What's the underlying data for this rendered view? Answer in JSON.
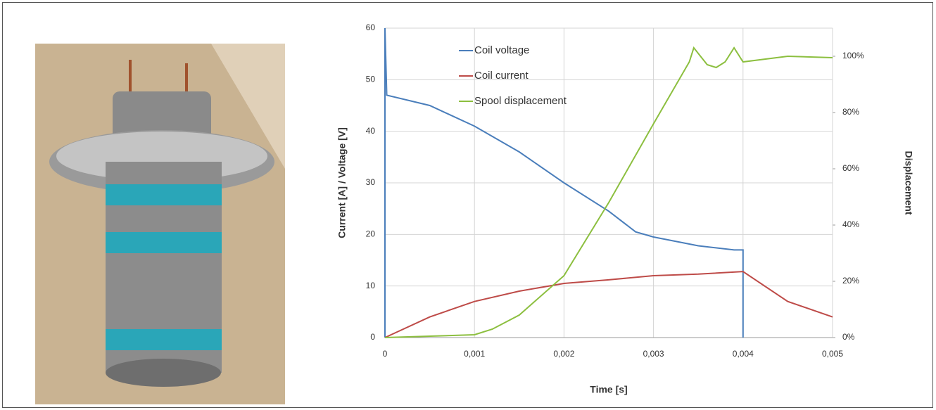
{
  "chart_data": {
    "type": "line",
    "xlabel": "Time [s]",
    "ylabel": "Current [A] / Voltage [V]",
    "y2label": "Displacement",
    "xlim": [
      0,
      0.005
    ],
    "xticks": [
      {
        "value": 0,
        "label": "0"
      },
      {
        "value": 0.001,
        "label": "0,001"
      },
      {
        "value": 0.002,
        "label": "0,002"
      },
      {
        "value": 0.003,
        "label": "0,003"
      },
      {
        "value": 0.004,
        "label": "0,004"
      },
      {
        "value": 0.005,
        "label": "0,005"
      }
    ],
    "ylim": [
      0,
      60
    ],
    "yticks": [
      0,
      10,
      20,
      30,
      40,
      50,
      60
    ],
    "y2lim": [
      0,
      110
    ],
    "y2ticks": [
      {
        "value": 0,
        "label": "0%"
      },
      {
        "value": 20,
        "label": "20%"
      },
      {
        "value": 40,
        "label": "40%"
      },
      {
        "value": 60,
        "label": "60%"
      },
      {
        "value": 80,
        "label": "80%"
      },
      {
        "value": 100,
        "label": "100%"
      }
    ],
    "grid": true,
    "legend": "upper left",
    "series": [
      {
        "name": "Coil voltage",
        "color": "#4a7ebb",
        "x": [
          0,
          0,
          2e-05,
          0.0005,
          0.001,
          0.0015,
          0.002,
          0.0025,
          0.0028,
          0.003,
          0.0035,
          0.0039,
          0.004,
          0.004
        ],
        "values": [
          0,
          60,
          47,
          45,
          41,
          36,
          30,
          24.5,
          20.5,
          19.5,
          17.8,
          17,
          17,
          0
        ]
      },
      {
        "name": "Coil current",
        "color": "#be4b48",
        "x": [
          0,
          0.0005,
          0.001,
          0.0015,
          0.002,
          0.0025,
          0.003,
          0.0035,
          0.004,
          0.0045,
          0.005
        ],
        "values": [
          0,
          4,
          7,
          9,
          10.5,
          11.2,
          12,
          12.3,
          12.8,
          7,
          4
        ]
      },
      {
        "name": "Spool displacement",
        "color": "#8cbf3f",
        "axis": "y2",
        "x": [
          0,
          0.001,
          0.0012,
          0.0015,
          0.002,
          0.0025,
          0.003,
          0.0034,
          0.00345,
          0.0036,
          0.0037,
          0.0038,
          0.0039,
          0.004,
          0.0045,
          0.005
        ],
        "values": [
          0,
          1,
          3,
          8,
          22,
          48,
          76,
          98,
          103,
          97,
          96,
          98,
          103,
          98,
          100,
          99.5
        ]
      }
    ]
  }
}
